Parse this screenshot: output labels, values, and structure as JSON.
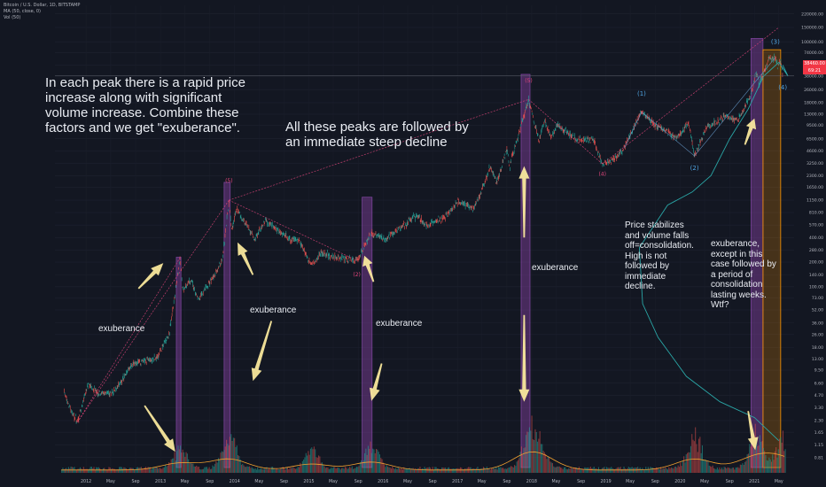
{
  "legend": {
    "symbol": "Bitcoin / U.S. Dollar, 1D, BITSTAMP",
    "ma": "MA (50, close, 0)",
    "vol": "Vol (50)"
  },
  "price_badge": {
    "value": "38460.00",
    "sub": "69:21"
  },
  "annotations": {
    "main": "In each peak there is a rapid price increase along with significant volume increase. Combine these factors and we get \"exuberance\".",
    "peaks": "All these peaks are followed by an immediate steep decline",
    "exuberance_1": "exuberance",
    "exuberance_2": "exuberance",
    "exuberance_3": "exuberance",
    "exuberance_4": "exuberance",
    "consolidation": "Price stabilizes and volume falls off=consolidation. High is not followed by immediate decline.",
    "exuberance_2021": "exuberance, except in this case followed by a period of consolidation lasting weeks. Wtf?"
  },
  "colors": {
    "background": "#131722",
    "candle_up": "#26a69a",
    "candle_down": "#ef5350",
    "ma": "#2aa6a6",
    "trendline": "#e0457b",
    "highlight_purple": "#8e44ad",
    "highlight_orange": "#ff9800",
    "arrow": "#ffeea0",
    "wave_label": "#4fa3e0"
  },
  "chart_data": {
    "type": "line",
    "title": "Bitcoin / U.S. Dollar, 1D, BITSTAMP",
    "y_scale": "log",
    "ylim": [
      0.5,
      280000
    ],
    "x_range": [
      "2011-08-01",
      "2021-07-15"
    ],
    "y_ticks": [
      "220000.00",
      "150000.00",
      "100000.00",
      "74000.00",
      "52000.00",
      "38000.00",
      "26000.00",
      "18000.00",
      "13000.00",
      "9500.00",
      "6500.00",
      "4600.00",
      "3250.00",
      "2300.00",
      "1650.00",
      "1150.00",
      "810.00",
      "570.00",
      "400.00",
      "280.00",
      "200.00",
      "140.00",
      "100.00",
      "73.00",
      "52.00",
      "36.00",
      "26.00",
      "18.00",
      "13.00",
      "9.50",
      "6.60",
      "4.70",
      "3.30",
      "2.30",
      "1.65",
      "1.15",
      "0.81"
    ],
    "x_ticks": [
      {
        "label": "2012",
        "date": "2012-01-01"
      },
      {
        "label": "May",
        "date": "2012-05-01"
      },
      {
        "label": "Sep",
        "date": "2012-09-01"
      },
      {
        "label": "2013",
        "date": "2013-01-01"
      },
      {
        "label": "May",
        "date": "2013-05-01"
      },
      {
        "label": "Sep",
        "date": "2013-09-01"
      },
      {
        "label": "2014",
        "date": "2014-01-01"
      },
      {
        "label": "May",
        "date": "2014-05-01"
      },
      {
        "label": "Sep",
        "date": "2014-09-01"
      },
      {
        "label": "2015",
        "date": "2015-01-01"
      },
      {
        "label": "May",
        "date": "2015-05-01"
      },
      {
        "label": "Sep",
        "date": "2015-09-01"
      },
      {
        "label": "2016",
        "date": "2016-01-01"
      },
      {
        "label": "May",
        "date": "2016-05-01"
      },
      {
        "label": "Sep",
        "date": "2016-09-01"
      },
      {
        "label": "2017",
        "date": "2017-01-01"
      },
      {
        "label": "May",
        "date": "2017-05-01"
      },
      {
        "label": "Sep",
        "date": "2017-09-01"
      },
      {
        "label": "2018",
        "date": "2018-01-01"
      },
      {
        "label": "May",
        "date": "2018-05-01"
      },
      {
        "label": "Sep",
        "date": "2018-09-01"
      },
      {
        "label": "2019",
        "date": "2019-01-01"
      },
      {
        "label": "May",
        "date": "2019-05-01"
      },
      {
        "label": "Sep",
        "date": "2019-09-01"
      },
      {
        "label": "2020",
        "date": "2020-01-01"
      },
      {
        "label": "May",
        "date": "2020-05-01"
      },
      {
        "label": "Sep",
        "date": "2020-09-01"
      },
      {
        "label": "2021",
        "date": "2021-01-01"
      },
      {
        "label": "May",
        "date": "2021-05-01"
      }
    ],
    "price_series": [
      {
        "date": "2011-09-15",
        "price": 5
      },
      {
        "date": "2011-10-20",
        "price": 3
      },
      {
        "date": "2011-11-20",
        "price": 2.2
      },
      {
        "date": "2012-01-10",
        "price": 6.5
      },
      {
        "date": "2012-03-01",
        "price": 4.8
      },
      {
        "date": "2012-05-15",
        "price": 5.1
      },
      {
        "date": "2012-08-15",
        "price": 11
      },
      {
        "date": "2012-10-01",
        "price": 12
      },
      {
        "date": "2012-12-15",
        "price": 13.5
      },
      {
        "date": "2013-02-15",
        "price": 28
      },
      {
        "date": "2013-04-09",
        "price": 230
      },
      {
        "date": "2013-04-20",
        "price": 90
      },
      {
        "date": "2013-06-01",
        "price": 120
      },
      {
        "date": "2013-07-05",
        "price": 70
      },
      {
        "date": "2013-09-15",
        "price": 130
      },
      {
        "date": "2013-11-01",
        "price": 210
      },
      {
        "date": "2013-12-04",
        "price": 1150
      },
      {
        "date": "2013-12-18",
        "price": 520
      },
      {
        "date": "2014-01-10",
        "price": 900
      },
      {
        "date": "2014-04-10",
        "price": 380
      },
      {
        "date": "2014-06-01",
        "price": 640
      },
      {
        "date": "2014-09-15",
        "price": 400
      },
      {
        "date": "2014-11-15",
        "price": 360
      },
      {
        "date": "2015-01-14",
        "price": 180
      },
      {
        "date": "2015-03-01",
        "price": 260
      },
      {
        "date": "2015-06-01",
        "price": 225
      },
      {
        "date": "2015-08-25",
        "price": 210
      },
      {
        "date": "2015-11-04",
        "price": 450
      },
      {
        "date": "2016-01-15",
        "price": 380
      },
      {
        "date": "2016-06-15",
        "price": 750
      },
      {
        "date": "2016-08-01",
        "price": 560
      },
      {
        "date": "2016-11-01",
        "price": 720
      },
      {
        "date": "2017-01-04",
        "price": 1100
      },
      {
        "date": "2017-03-25",
        "price": 900
      },
      {
        "date": "2017-06-10",
        "price": 2900
      },
      {
        "date": "2017-07-15",
        "price": 1900
      },
      {
        "date": "2017-09-01",
        "price": 4900
      },
      {
        "date": "2017-09-15",
        "price": 3000
      },
      {
        "date": "2017-12-17",
        "price": 19700
      },
      {
        "date": "2018-02-06",
        "price": 6200
      },
      {
        "date": "2018-03-05",
        "price": 11500
      },
      {
        "date": "2018-04-06",
        "price": 6600
      },
      {
        "date": "2018-05-05",
        "price": 9800
      },
      {
        "date": "2018-08-15",
        "price": 6300
      },
      {
        "date": "2018-11-01",
        "price": 6400
      },
      {
        "date": "2018-12-15",
        "price": 3200
      },
      {
        "date": "2019-02-01",
        "price": 3500
      },
      {
        "date": "2019-04-02",
        "price": 5000
      },
      {
        "date": "2019-06-26",
        "price": 13800
      },
      {
        "date": "2019-09-01",
        "price": 9600
      },
      {
        "date": "2019-12-17",
        "price": 6600
      },
      {
        "date": "2020-02-13",
        "price": 10400
      },
      {
        "date": "2020-03-12",
        "price": 4000
      },
      {
        "date": "2020-05-10",
        "price": 9000
      },
      {
        "date": "2020-08-17",
        "price": 12400
      },
      {
        "date": "2020-10-10",
        "price": 11000
      },
      {
        "date": "2020-12-17",
        "price": 23000
      },
      {
        "date": "2021-01-08",
        "price": 41000
      },
      {
        "date": "2021-01-25",
        "price": 31000
      },
      {
        "date": "2021-03-13",
        "price": 61000
      },
      {
        "date": "2021-04-14",
        "price": 64500
      },
      {
        "date": "2021-04-25",
        "price": 50000
      },
      {
        "date": "2021-05-10",
        "price": 58000
      },
      {
        "date": "2021-05-20",
        "price": 38460
      }
    ],
    "ma_series": [
      {
        "date": "2021-05-20",
        "price": 52000
      },
      {
        "date": "2021-06-15",
        "price": 38000
      },
      {
        "date": "2021-05-01",
        "price": 56000
      },
      {
        "date": "2021-02-15",
        "price": 38000
      },
      {
        "date": "2020-12-01",
        "price": 15000
      },
      {
        "date": "2020-09-01",
        "price": 6500
      },
      {
        "date": "2020-06-01",
        "price": 2300
      },
      {
        "date": "2020-03-01",
        "price": 1450
      },
      {
        "date": "2019-11-01",
        "price": 1000
      },
      {
        "date": "2019-06-15",
        "price": 300
      },
      {
        "date": "2019-07-01",
        "price": 62
      },
      {
        "date": "2019-09-15",
        "price": 24
      },
      {
        "date": "2020-02-01",
        "price": 8
      },
      {
        "date": "2020-07-15",
        "price": 3.9
      },
      {
        "date": "2021-01-01",
        "price": 2.5
      },
      {
        "date": "2021-05-01",
        "price": 1.3
      }
    ],
    "trendlines": [
      {
        "from": {
          "date": "2011-11-20",
          "price": 2.2
        },
        "to": {
          "date": "2013-12-04",
          "price": 1150
        }
      },
      {
        "from": {
          "date": "2011-11-20",
          "price": 2.2
        },
        "to": {
          "date": "2013-04-09",
          "price": 230
        }
      },
      {
        "from": {
          "date": "2013-12-04",
          "price": 1150
        },
        "to": {
          "date": "2015-08-25",
          "price": 210
        }
      },
      {
        "from": {
          "date": "2013-12-04",
          "price": 1150
        },
        "to": {
          "date": "2017-12-17",
          "price": 19700
        }
      },
      {
        "from": {
          "date": "2017-12-17",
          "price": 19700
        },
        "to": {
          "date": "2018-12-15",
          "price": 3200
        }
      },
      {
        "from": {
          "date": "2018-12-15",
          "price": 3200
        },
        "to": {
          "date": "2021-05-01",
          "price": 150000
        }
      }
    ],
    "highlight_bands": [
      {
        "start": "2013-03-20",
        "end": "2013-04-12",
        "top": 230,
        "color": "purple"
      },
      {
        "start": "2013-11-10",
        "end": "2013-12-10",
        "top": 1900,
        "color": "purple"
      },
      {
        "start": "2015-09-20",
        "end": "2015-11-08",
        "top": 1250,
        "color": "purple"
      },
      {
        "start": "2017-11-10",
        "end": "2017-12-24",
        "top": 40000,
        "color": "purple"
      },
      {
        "start": "2020-12-15",
        "end": "2021-02-12",
        "top": 110000,
        "color": "purple"
      },
      {
        "start": "2021-02-12",
        "end": "2021-05-10",
        "top": 80000,
        "color": "orange"
      }
    ],
    "elliott_waves": [
      {
        "label": "(1)",
        "date": "2019-06-26",
        "price": 22000
      },
      {
        "label": "(2)",
        "date": "2020-03-12",
        "price": 2700
      },
      {
        "label": "(3)",
        "date": "2021-04-14",
        "price": 95000
      },
      {
        "label": "(4)",
        "date": "2021-05-20",
        "price": 26000
      }
    ],
    "pink_labels": [
      {
        "label": "(5)",
        "date": "2013-12-04",
        "price": 1900
      },
      {
        "label": "(5)",
        "date": "2017-12-17",
        "price": 32000
      },
      {
        "label": "(2)",
        "date": "2015-08-25",
        "price": 135
      },
      {
        "label": "(4)",
        "date": "2018-12-15",
        "price": 2300
      }
    ],
    "arrows": [
      {
        "from": {
          "date": "2012-10-15",
          "price": 3.5
        },
        "to": {
          "date": "2013-03-15",
          "price": 0.95
        }
      },
      {
        "from": {
          "date": "2012-09-15",
          "price": 95
        },
        "to": {
          "date": "2013-01-15",
          "price": 195
        }
      },
      {
        "from": {
          "date": "2014-04-01",
          "price": 140
        },
        "to": {
          "date": "2014-01-15",
          "price": 350
        }
      },
      {
        "from": {
          "date": "2014-07-01",
          "price": 38
        },
        "to": {
          "date": "2014-04-01",
          "price": 7
        }
      },
      {
        "from": {
          "date": "2015-11-15",
          "price": 115
        },
        "to": {
          "date": "2015-10-01",
          "price": 240
        }
      },
      {
        "from": {
          "date": "2015-12-25",
          "price": 11.5
        },
        "to": {
          "date": "2015-11-05",
          "price": 4.0
        }
      },
      {
        "from": {
          "date": "2017-11-25",
          "price": 45
        },
        "to": {
          "date": "2017-11-25",
          "price": 3.9
        }
      },
      {
        "from": {
          "date": "2017-11-25",
          "price": 400
        },
        "to": {
          "date": "2017-11-25",
          "price": 3000
        }
      },
      {
        "from": {
          "date": "2020-12-01",
          "price": 3.0
        },
        "to": {
          "date": "2021-01-05",
          "price": 1.0
        }
      },
      {
        "from": {
          "date": "2020-11-15",
          "price": 5500
        },
        "to": {
          "date": "2021-01-01",
          "price": 11500
        }
      }
    ],
    "volume_bursts": [
      {
        "date": "2013-04-09",
        "level": 0.35
      },
      {
        "date": "2013-12-04",
        "level": 0.55
      },
      {
        "date": "2015-01-14",
        "level": 0.3
      },
      {
        "date": "2015-11-04",
        "level": 0.4
      },
      {
        "date": "2017-12-17",
        "level": 0.55
      },
      {
        "date": "2018-02-06",
        "level": 0.4
      },
      {
        "date": "2020-03-12",
        "level": 0.55
      },
      {
        "date": "2021-01-08",
        "level": 0.6
      },
      {
        "date": "2021-05-20",
        "level": 0.5
      }
    ],
    "horizontal_line_price": 38460
  }
}
